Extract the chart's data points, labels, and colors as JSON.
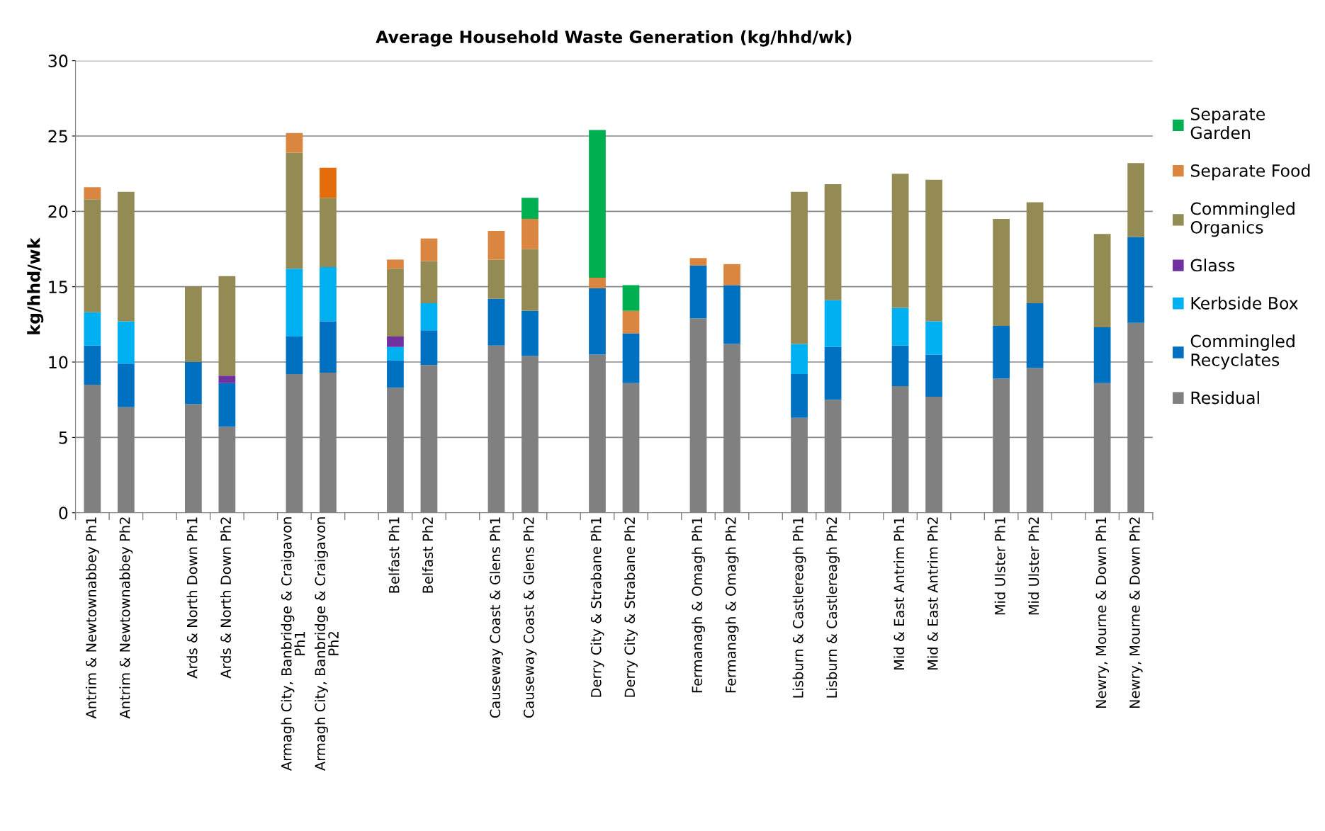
{
  "chart_data": {
    "type": "bar",
    "stacked": true,
    "title": "Average Household Waste Generation (kg/hhd/wk)",
    "ylabel": "kg/hhd/wk",
    "categories": [
      "Antrim & Newtownabbey Ph1",
      "Antrim & Newtownabbey Ph2",
      null,
      "Ards & North Down Ph1",
      "Ards & North Down Ph2",
      null,
      "Armagh City, Banbridge & Craigavon\nPh1",
      "Armagh City, Banbridge & Craigavon\nPh2",
      null,
      "Belfast Ph1",
      "Belfast Ph2",
      null,
      "Causeway Coast & Glens Ph1",
      "Causeway Coast & Glens Ph2",
      null,
      "Derry City & Strabane Ph1",
      "Derry City & Strabane Ph2",
      null,
      "Fermanagh & Omagh Ph1",
      "Fermanagh & Omagh Ph2",
      null,
      "Lisburn & Castlereagh Ph1",
      "Lisburn & Castlereagh Ph2",
      null,
      "Mid & East Antrim Ph1",
      "Mid & East Antrim Ph2",
      null,
      "Mid Ulster Ph1",
      "Mid Ulster Ph2",
      null,
      "Newry, Mourne & Down Ph1",
      "Newry, Mourne & Down Ph2"
    ],
    "series": [
      {
        "name": "Residual",
        "color": "#808080",
        "values": [
          8.5,
          7.0,
          null,
          7.2,
          5.7,
          null,
          9.2,
          9.3,
          null,
          8.3,
          9.8,
          null,
          11.1,
          10.4,
          null,
          10.5,
          8.6,
          null,
          12.9,
          11.2,
          null,
          6.3,
          7.5,
          null,
          8.4,
          7.7,
          null,
          8.9,
          9.6,
          null,
          8.6,
          12.6
        ]
      },
      {
        "name": "Commingled Recyclates",
        "color": "#0070c0",
        "values": [
          2.6,
          2.9,
          null,
          2.8,
          2.9,
          null,
          2.5,
          3.4,
          null,
          1.8,
          2.3,
          null,
          3.1,
          3.0,
          null,
          4.4,
          3.3,
          null,
          3.5,
          3.9,
          null,
          2.9,
          3.5,
          null,
          2.7,
          2.8,
          null,
          3.5,
          4.3,
          null,
          3.7,
          5.7
        ]
      },
      {
        "name": "Kerbside Box",
        "color": "#00b0f0",
        "values": [
          2.2,
          2.8,
          null,
          null,
          null,
          null,
          4.5,
          3.6,
          null,
          0.9,
          1.8,
          null,
          null,
          null,
          null,
          null,
          null,
          null,
          null,
          null,
          null,
          2.0,
          3.1,
          null,
          2.5,
          2.2,
          null,
          null,
          null,
          null,
          null,
          null
        ]
      },
      {
        "name": "Glass",
        "color": "#7030a0",
        "values": [
          null,
          null,
          null,
          null,
          0.5,
          null,
          null,
          null,
          null,
          0.7,
          null,
          null,
          null,
          null,
          null,
          null,
          null,
          null,
          null,
          null,
          null,
          null,
          null,
          null,
          null,
          null,
          null,
          null,
          null,
          null,
          null,
          null
        ]
      },
      {
        "name": "Commingled Organics",
        "color": "#948a54",
        "values": [
          7.5,
          8.6,
          null,
          5.0,
          6.6,
          null,
          7.7,
          4.6,
          null,
          4.5,
          2.8,
          null,
          2.6,
          4.1,
          null,
          null,
          null,
          null,
          null,
          null,
          null,
          10.1,
          7.7,
          null,
          8.9,
          9.4,
          null,
          7.1,
          6.7,
          null,
          6.2,
          4.9
        ]
      },
      {
        "name": "Separate Food",
        "color": "#da8640",
        "colors": [
          "#da8640",
          "#da8640",
          "#da8640",
          "#da8640",
          "#da8640",
          "#da8640",
          "#da8640",
          "#e46c0a",
          "#da8640",
          "#da8640",
          "#da8640",
          "#da8640",
          "#da8640",
          "#da8640",
          "#da8640",
          "#da8640",
          "#da8640",
          "#da8640",
          "#da8640",
          "#da8640",
          "#da8640",
          "#da8640",
          "#da8640",
          "#da8640",
          "#da8640",
          "#da8640",
          "#da8640",
          "#da8640",
          "#da8640",
          "#da8640",
          "#da8640",
          "#da8640"
        ],
        "values": [
          0.8,
          null,
          null,
          null,
          null,
          null,
          1.3,
          2.0,
          null,
          0.6,
          1.5,
          null,
          1.9,
          2.0,
          null,
          0.7,
          1.5,
          null,
          0.5,
          1.4,
          null,
          null,
          null,
          null,
          null,
          null,
          null,
          null,
          null,
          null,
          null,
          null
        ]
      },
      {
        "name": "Separate Garden",
        "color": "#00b050",
        "values": [
          null,
          null,
          null,
          null,
          null,
          null,
          null,
          null,
          null,
          null,
          null,
          null,
          null,
          1.4,
          null,
          9.8,
          1.7,
          null,
          null,
          null,
          null,
          null,
          null,
          null,
          null,
          null,
          null,
          null,
          null,
          null,
          null,
          null
        ]
      }
    ],
    "ylim": [
      0,
      30
    ],
    "yticks": [
      0,
      5,
      10,
      15,
      20,
      25,
      30
    ],
    "grid": "y",
    "legend": "right"
  }
}
